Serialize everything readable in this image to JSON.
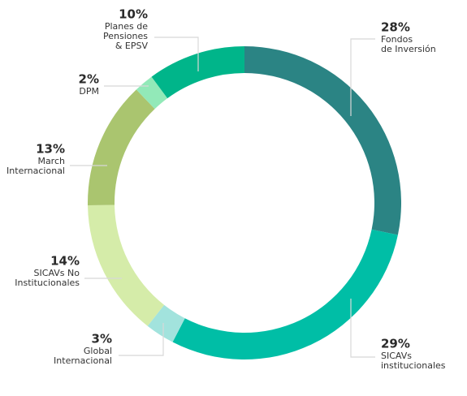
{
  "chart_data": {
    "type": "donut",
    "categories": [
      [
        "Fondos",
        "de Inversión"
      ],
      [
        "SICAVs",
        "institucionales"
      ],
      [
        "Global",
        "Internacional"
      ],
      [
        "SICAVs No",
        "Institucionales"
      ],
      [
        "March",
        "Internacional"
      ],
      [
        "DPM"
      ],
      [
        "Planes de",
        "Pensiones",
        "& EPSV"
      ]
    ],
    "values": [
      28,
      29,
      3,
      14,
      13,
      2,
      10
    ],
    "value_labels": [
      "28%",
      "29%",
      "3%",
      "14%",
      "13%",
      "2%",
      "10%"
    ],
    "colors": [
      "#2b8484",
      "#00bea6",
      "#a2e3dd",
      "#d5eca9",
      "#aac56f",
      "#92e9b8",
      "#00b58a"
    ]
  }
}
